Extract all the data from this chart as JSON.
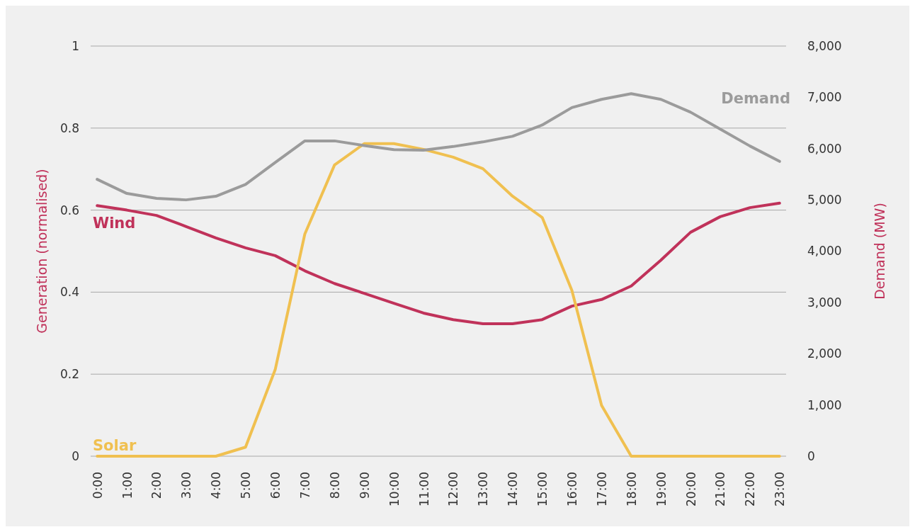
{
  "chart_data": {
    "type": "line",
    "ylabel": "Generation (normalised)",
    "y2label": "Demand (MW)",
    "categories": [
      "0:00",
      "1:00",
      "2:00",
      "3:00",
      "4:00",
      "5:00",
      "6:00",
      "7:00",
      "8:00",
      "9:00",
      "10:00",
      "11:00",
      "12:00",
      "13:00",
      "14:00",
      "15:00",
      "16:00",
      "17:00",
      "18:00",
      "19:00",
      "20:00",
      "21:00",
      "22:00",
      "23:00"
    ],
    "series": [
      {
        "name": "Wind",
        "color": "#c0325a",
        "values": [
          0.611,
          0.6,
          0.587,
          0.56,
          0.532,
          0.508,
          0.489,
          0.452,
          0.421,
          0.397,
          0.373,
          0.349,
          0.333,
          0.323,
          0.323,
          0.333,
          0.366,
          0.382,
          0.415,
          0.478,
          0.546,
          0.584,
          0.606,
          0.617
        ]
      },
      {
        "name": "Solar",
        "color": "#f0c050",
        "values": [
          0,
          0,
          0,
          0,
          0,
          0.022,
          0.211,
          0.542,
          0.71,
          0.762,
          0.762,
          0.748,
          0.729,
          0.701,
          0.634,
          0.582,
          0.404,
          0.124,
          0,
          0,
          0,
          0,
          0,
          0
        ]
      },
      {
        "name": "Demand",
        "color": "#9b9b9b",
        "axis": "y2",
        "values": [
          5400,
          5125,
          5030,
          5000,
          5070,
          5300,
          5730,
          6150,
          6150,
          6060,
          5980,
          5970,
          6040,
          6130,
          6240,
          6460,
          6800,
          6960,
          7070,
          6960,
          6710,
          6380,
          6050,
          5750
        ]
      }
    ],
    "ylim": [
      0,
      1
    ],
    "yticks": [
      0,
      0.2,
      0.4,
      0.6,
      0.8,
      1
    ],
    "y2lim": [
      0,
      8000
    ],
    "y2ticks": [
      0,
      {
        "value": 1000,
        "label": "1,000"
      },
      {
        "value": 2000,
        "label": "2,000"
      },
      {
        "value": 3000,
        "label": "3,000"
      },
      {
        "value": 4000,
        "label": "4,000"
      },
      {
        "value": 5000,
        "label": "5,000"
      },
      {
        "value": 6000,
        "label": "6,000"
      },
      {
        "value": 7000,
        "label": "7,000"
      },
      {
        "value": 8000,
        "label": "8,000"
      }
    ],
    "grid": "y",
    "legend": false,
    "marker": "none",
    "line_style": "solid"
  }
}
